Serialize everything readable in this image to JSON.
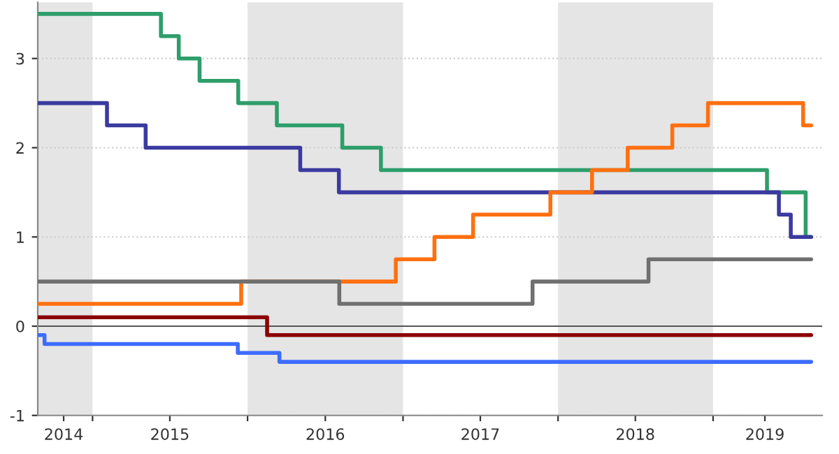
{
  "chart_data": {
    "type": "step",
    "xlim": [
      "2014-08-25",
      "2019-09-15"
    ],
    "xticks": [
      {
        "value": "2014-10-25",
        "label": "2014"
      },
      {
        "value": "2015-07-02",
        "label": "2015"
      },
      {
        "value": "2016-07-02",
        "label": "2016"
      },
      {
        "value": "2017-07-02",
        "label": "2017"
      },
      {
        "value": "2018-07-02",
        "label": "2018"
      },
      {
        "value": "2019-05-03",
        "label": "2019"
      },
      {
        "value": "2015-01-01",
        "label": null
      },
      {
        "value": "2016-01-01",
        "label": null
      },
      {
        "value": "2017-01-01",
        "label": null
      },
      {
        "value": "2018-01-01",
        "label": null
      },
      {
        "value": "2019-01-01",
        "label": null
      }
    ],
    "ylim": [
      -1,
      3.63
    ],
    "yticks": [
      -1,
      0,
      1,
      2,
      3
    ],
    "grid": "y",
    "bands": [
      {
        "axis": "x",
        "from": "2014-08-25",
        "to": "2015-01-01",
        "color": "#e5e5e5"
      },
      {
        "axis": "x",
        "from": "2016-01-01",
        "to": "2017-01-01",
        "color": "#e5e5e5"
      },
      {
        "axis": "x",
        "from": "2018-01-01",
        "to": "2019-01-01",
        "color": "#e5e5e5"
      }
    ],
    "ref_lines": [
      {
        "axis": "y",
        "value": 0,
        "color": "#555555"
      }
    ],
    "series": [
      {
        "color": "#2e9e6a",
        "x": [
          "2014-08-25",
          "2015-06-11",
          "2015-07-23",
          "2015-09-10",
          "2015-12-10",
          "2016-03-10",
          "2016-08-11",
          "2016-11-10",
          "2019-05-08",
          "2019-08-07",
          "2019-08-20"
        ],
        "values": [
          3.5,
          3.25,
          3.0,
          2.75,
          2.5,
          2.25,
          2.0,
          1.75,
          1.5,
          1.0,
          1.0
        ]
      },
      {
        "color": "#3a3aa0",
        "x": [
          "2014-08-25",
          "2015-02-04",
          "2015-05-06",
          "2016-05-04",
          "2016-08-03",
          "2019-06-05",
          "2019-07-03",
          "2019-08-20"
        ],
        "values": [
          2.5,
          2.25,
          2.0,
          1.75,
          1.5,
          1.25,
          1.0,
          1.0
        ]
      },
      {
        "color": "#ff7010",
        "x": [
          "2014-08-25",
          "2015-12-17",
          "2016-12-15",
          "2017-03-16",
          "2017-06-15",
          "2017-12-14",
          "2018-03-22",
          "2018-06-14",
          "2018-09-27",
          "2018-12-20",
          "2019-08-01",
          "2019-08-20"
        ],
        "values": [
          0.25,
          0.5,
          0.75,
          1.0,
          1.25,
          1.5,
          1.75,
          2.0,
          2.25,
          2.5,
          2.25,
          2.25
        ]
      },
      {
        "color": "#707070",
        "x": [
          "2014-08-25",
          "2016-08-04",
          "2017-11-02",
          "2018-08-02",
          "2019-08-20"
        ],
        "values": [
          0.5,
          0.25,
          0.5,
          0.75,
          0.75
        ]
      },
      {
        "color": "#8b0000",
        "x": [
          "2014-08-25",
          "2016-02-16",
          "2019-08-20"
        ],
        "values": [
          0.1,
          -0.1,
          -0.1
        ]
      },
      {
        "color": "#3d6cff",
        "x": [
          "2014-08-25",
          "2014-09-10",
          "2015-12-09",
          "2016-03-16",
          "2019-08-20"
        ],
        "values": [
          -0.1,
          -0.2,
          -0.3,
          -0.4,
          -0.4
        ]
      }
    ]
  }
}
